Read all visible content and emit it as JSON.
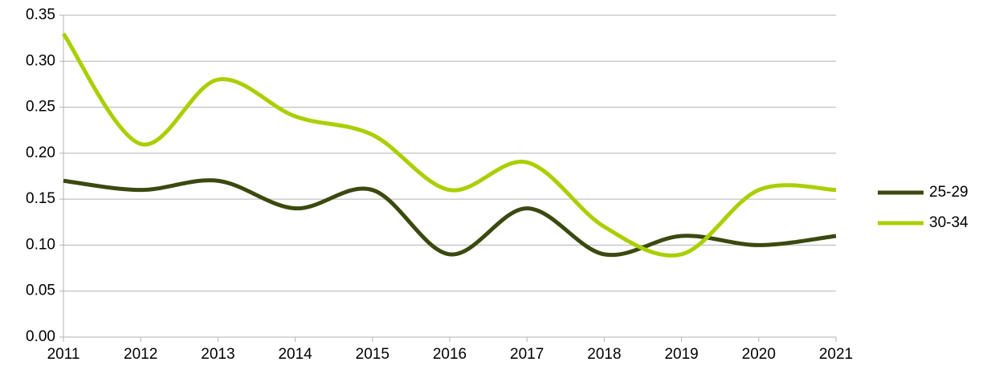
{
  "chart_data": {
    "type": "line",
    "x": [
      2011,
      2012,
      2013,
      2014,
      2015,
      2016,
      2017,
      2018,
      2019,
      2020,
      2021
    ],
    "xlim": [
      2011,
      2021
    ],
    "xticks": [
      2011,
      2012,
      2013,
      2014,
      2015,
      2016,
      2017,
      2018,
      2019,
      2020,
      2021
    ],
    "ylim": [
      0,
      0.35
    ],
    "yticks": [
      {
        "value": 0,
        "label": "0.00"
      },
      {
        "value": 0.05,
        "label": "0.05"
      },
      {
        "value": 0.1,
        "label": "0.10"
      },
      {
        "value": 0.15,
        "label": "0.15"
      },
      {
        "value": 0.2,
        "label": "0.20"
      },
      {
        "value": 0.25,
        "label": "0.25"
      },
      {
        "value": 0.3,
        "label": "0.30"
      },
      {
        "value": 0.35,
        "label": "0.35"
      }
    ],
    "grid": true,
    "smooth": true,
    "legend": "right",
    "series": [
      {
        "name": "25-29",
        "color": "#3a4a0f",
        "values": [
          0.17,
          0.16,
          0.17,
          0.14,
          0.16,
          0.09,
          0.14,
          0.09,
          0.11,
          0.1,
          0.11
        ]
      },
      {
        "name": "30-34",
        "color": "#aacf00",
        "values": [
          0.33,
          0.21,
          0.28,
          0.24,
          0.22,
          0.16,
          0.19,
          0.12,
          0.09,
          0.16,
          0.16
        ]
      }
    ]
  }
}
